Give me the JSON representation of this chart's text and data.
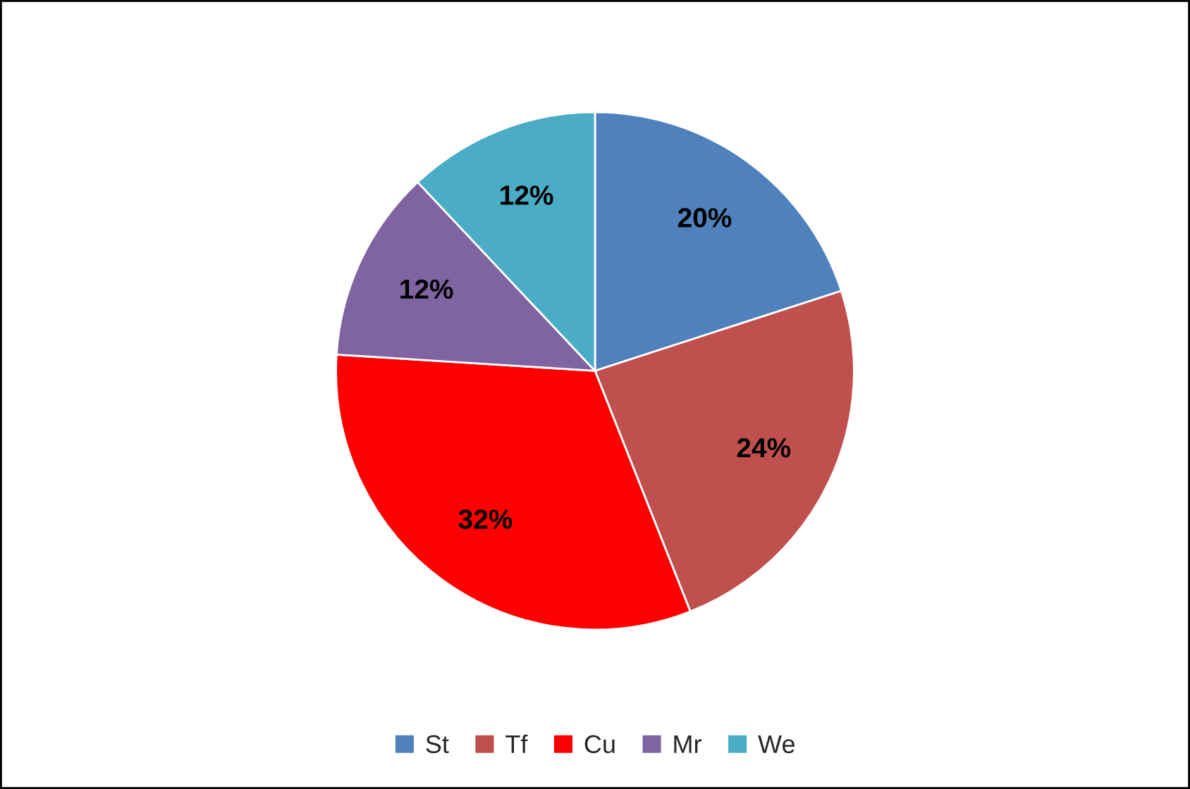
{
  "chart_data": {
    "type": "pie",
    "categories": [
      "St",
      "Tf",
      "Cu",
      "Mr",
      "We"
    ],
    "values": [
      20,
      24,
      32,
      12,
      12
    ],
    "value_labels": [
      "20%",
      "24%",
      "32%",
      "12%",
      "12%"
    ],
    "colors": [
      "#4f81bd",
      "#c0504d",
      "#ff0000",
      "#8064a2",
      "#4bacc6"
    ],
    "legend": "bottom"
  }
}
